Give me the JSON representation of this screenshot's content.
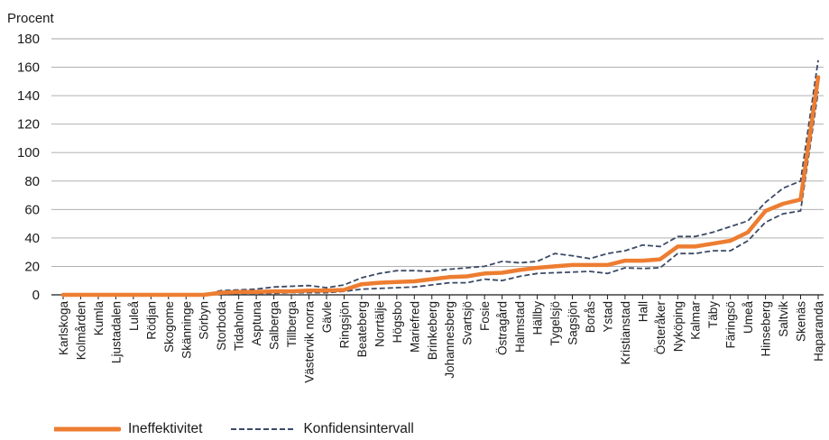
{
  "chart_data": {
    "type": "line",
    "ylabel": "Procent",
    "ylim": [
      0,
      180
    ],
    "yticks": [
      0,
      20,
      40,
      60,
      80,
      100,
      120,
      140,
      160,
      180
    ],
    "grid": true,
    "legend_position": "bottom-left",
    "categories": [
      "Karlskoga",
      "Kolmården",
      "Kumla",
      "Ljustadalen",
      "Luleå",
      "Rödjan",
      "Skogome",
      "Skänninge",
      "Sörbyn",
      "Storboda",
      "Tidaholm",
      "Asptuna",
      "Salberga",
      "Tillberga",
      "Västervik norra",
      "Gävle",
      "Ringsjön",
      "Beateberg",
      "Norrtälje",
      "Högsbo",
      "Mariefred",
      "Brinkeberg",
      "Johannesberg",
      "Svartsjö",
      "Fosie",
      "Östragård",
      "Halmstad",
      "Hällby",
      "Tygelsjö",
      "Sagsjön",
      "Borås",
      "Ystad",
      "Kristianstad",
      "Hall",
      "Österåker",
      "Nyköping",
      "Kalmar",
      "Täby",
      "Färingsö",
      "Umeå",
      "Hinseberg",
      "Saltvik",
      "Skenäs",
      "Haparanda"
    ],
    "series": [
      {
        "name": "Ineffektivitet",
        "color": "#ed7d31",
        "style": "solid",
        "values": [
          0,
          0,
          0,
          0,
          0,
          0,
          0,
          0,
          0,
          1.5,
          2,
          2,
          2.5,
          2.5,
          3,
          3,
          3.5,
          7.5,
          8.5,
          9,
          9.5,
          11,
          12.5,
          13,
          15,
          15.5,
          17.5,
          19,
          20,
          21,
          21,
          21,
          24,
          24,
          25,
          34,
          34,
          36,
          38,
          44,
          59,
          64,
          67,
          153
        ]
      },
      {
        "name": "Konfidensintervall",
        "color": "#3b4a66",
        "style": "dashed",
        "values": [
          0,
          0,
          0,
          0,
          0,
          0,
          0,
          0,
          0,
          3,
          3.5,
          4,
          5.5,
          6,
          6.5,
          5,
          7,
          12,
          15,
          17,
          17,
          16.5,
          18,
          19,
          20,
          23.5,
          22.5,
          23.5,
          29,
          27.5,
          25.5,
          29,
          31,
          35,
          34,
          41,
          41,
          44,
          48,
          52,
          65,
          75,
          80,
          165
        ]
      },
      {
        "name": "",
        "color": "#3b4a66",
        "style": "dashed",
        "values": [
          0,
          0,
          0,
          0,
          0,
          0,
          0,
          0,
          0,
          0.5,
          1,
          1,
          1,
          1.5,
          1.5,
          1.5,
          2.5,
          4,
          4.5,
          5,
          5.5,
          7,
          8.5,
          8.5,
          11,
          10,
          13,
          15,
          15.5,
          16,
          16.5,
          15,
          19,
          18.5,
          19,
          29,
          29,
          31,
          31,
          38,
          51,
          57,
          59,
          143
        ]
      }
    ]
  },
  "legend": {
    "items": [
      {
        "label": "Ineffektivitet",
        "color": "#ed7d31",
        "style": "solid"
      },
      {
        "label": "Konfidensintervall",
        "color": "#3b4a66",
        "style": "dashed"
      }
    ]
  }
}
